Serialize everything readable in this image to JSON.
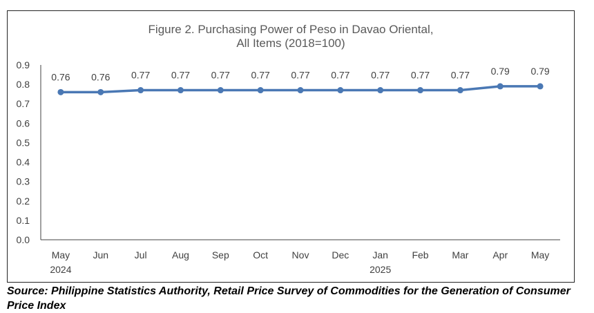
{
  "chart_data": {
    "type": "line",
    "title_line1": "Figure 2. Purchasing Power of Peso in Davao Oriental,",
    "title_line2": "All Items (2018=100)",
    "categories": [
      "May",
      "Jun",
      "Jul",
      "Aug",
      "Sep",
      "Oct",
      "Nov",
      "Dec",
      "Jan",
      "Feb",
      "Mar",
      "Apr",
      "May"
    ],
    "year_labels": [
      {
        "index": 0,
        "label": "2024"
      },
      {
        "index": 8,
        "label": "2025"
      }
    ],
    "series": [
      {
        "values": [
          0.76,
          0.76,
          0.77,
          0.77,
          0.77,
          0.77,
          0.77,
          0.77,
          0.77,
          0.77,
          0.77,
          0.79,
          0.79
        ],
        "labels": [
          "0.76",
          "0.76",
          "0.77",
          "0.77",
          "0.77",
          "0.77",
          "0.77",
          "0.77",
          "0.77",
          "0.77",
          "0.77",
          "0.79",
          "0.79"
        ]
      }
    ],
    "ylim": [
      0,
      0.9
    ],
    "yticks": [
      "0.0",
      "0.1",
      "0.2",
      "0.3",
      "0.4",
      "0.5",
      "0.6",
      "0.7",
      "0.8",
      "0.9"
    ],
    "grid": false,
    "legend": "none",
    "line_color": "#4a78b4"
  },
  "source": "Source: Philippine Statistics Authority, Retail Price Survey of Commodities for the Generation of Consumer Price Index"
}
